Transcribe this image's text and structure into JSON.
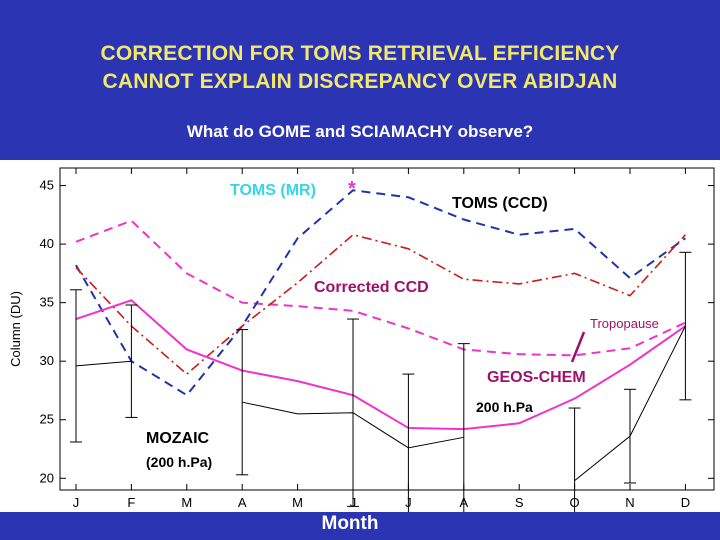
{
  "slide": {
    "title_line1": "CORRECTION FOR TOMS RETRIEVAL EFFICIENCY",
    "title_line2": "CANNOT EXPLAIN DISCREPANCY OVER ABIDJAN",
    "subtitle": "What do GOME and SCIAMACHY observe?"
  },
  "colors": {
    "background": "#2b35b4",
    "title": "#f3e86a",
    "toms_mr": "#ee33cc",
    "toms_ccd": "#2233aa",
    "corrected_ccd": "#cc1a1a",
    "geos_chem": "#ee33cc",
    "mozaic": "#000000",
    "label_cyan": "#33d6e8",
    "label_magenta": "#a0106a"
  },
  "chart_data": {
    "type": "line",
    "categories": [
      "J",
      "F",
      "M",
      "A",
      "M",
      "J",
      "J",
      "A",
      "S",
      "O",
      "N",
      "D"
    ],
    "xlabel": "Month",
    "ylabel": "Column (DU)",
    "ylim": [
      19,
      46.5
    ],
    "yticks": [
      20,
      25,
      30,
      35,
      40,
      45
    ],
    "series": [
      {
        "name": "TOMS (MR)",
        "style": "dashed",
        "values": [
          40.2,
          42.0,
          37.5,
          35.0,
          34.7,
          34.3,
          32.8,
          31.0,
          30.6,
          30.5,
          31.1,
          33.3
        ]
      },
      {
        "name": "TOMS (CCD)",
        "style": "dashed",
        "values": [
          38.2,
          30.0,
          27.1,
          33.0,
          40.5,
          44.6,
          44.0,
          42.1,
          40.8,
          41.3,
          37.1,
          40.5
        ]
      },
      {
        "name": "Corrected CCD",
        "style": "dashdot",
        "values": [
          38.0,
          33.0,
          28.9,
          33.0,
          36.7,
          40.8,
          39.6,
          37.0,
          36.6,
          37.5,
          35.6,
          40.8
        ]
      },
      {
        "name": "GEOS-CHEM",
        "style": "solid",
        "values": [
          33.6,
          35.2,
          31.0,
          29.2,
          28.3,
          27.1,
          24.3,
          24.2,
          24.7,
          26.8,
          29.7,
          33.0
        ]
      },
      {
        "name": "MOZAIC",
        "style": "solid",
        "values": [
          29.6,
          30.0,
          null,
          26.5,
          25.5,
          25.6,
          22.6,
          23.5,
          null,
          19.8,
          23.6,
          33.0
        ],
        "error": [
          6.5,
          4.8,
          null,
          6.2,
          null,
          8.0,
          6.3,
          8.0,
          null,
          6.2,
          4.0,
          6.3
        ]
      }
    ],
    "annotations": [
      {
        "text": "TOMS (MR)",
        "marker": "*"
      },
      {
        "text": "TOMS (CCD)"
      },
      {
        "text": "Corrected CCD"
      },
      {
        "text": "Tropopause"
      },
      {
        "text": "GEOS-CHEM"
      },
      {
        "text": "200 h.Pa"
      },
      {
        "text": "MOZAIC"
      },
      {
        "text": "(200 h.Pa)"
      }
    ],
    "legend": "none",
    "grid": false
  }
}
